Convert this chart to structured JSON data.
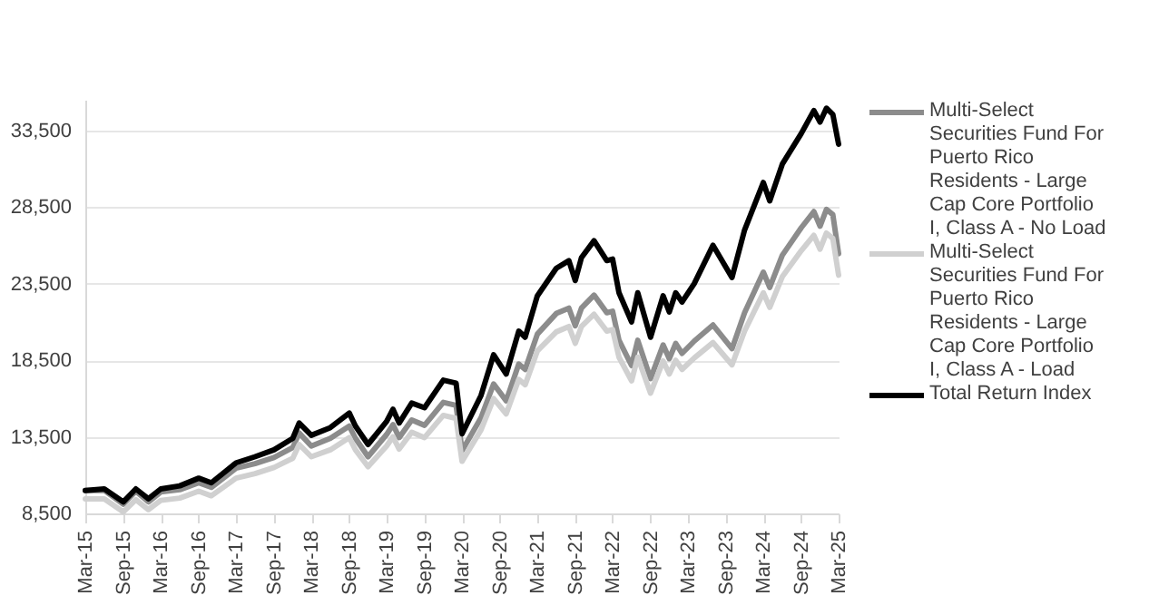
{
  "chart_data": {
    "type": "line",
    "x": [
      "2015-03",
      "2015-06",
      "2015-09",
      "2015-11",
      "2016-01",
      "2016-03",
      "2016-06",
      "2016-09",
      "2016-11",
      "2017-03",
      "2017-06",
      "2017-09",
      "2017-12",
      "2018-01",
      "2018-03",
      "2018-06",
      "2018-09",
      "2018-10",
      "2018-12",
      "2019-03",
      "2019-04",
      "2019-05",
      "2019-07",
      "2019-09",
      "2019-12",
      "2020-02",
      "2020-03",
      "2020-06",
      "2020-08",
      "2020-10",
      "2020-12",
      "2021-01",
      "2021-03",
      "2021-06",
      "2021-08",
      "2021-09",
      "2021-10",
      "2021-12",
      "2022-02",
      "2022-03",
      "2022-04",
      "2022-06",
      "2022-07",
      "2022-09",
      "2022-11",
      "2022-12",
      "2023-01",
      "2023-02",
      "2023-04",
      "2023-07",
      "2023-10",
      "2023-12",
      "2024-03",
      "2024-04",
      "2024-06",
      "2024-09",
      "2024-11",
      "2024-12",
      "2025-01",
      "2025-02",
      "2025-03"
    ],
    "series": [
      {
        "name": "Multi-Select Securities Fund For Puerto Rico Residents - Large Cap Core Portfolio I, Class A - No Load",
        "color": "#8c8c8c",
        "values": [
          10000,
          10000,
          9100,
          9950,
          9250,
          9900,
          10050,
          10500,
          10200,
          11450,
          11750,
          12150,
          12800,
          13750,
          12900,
          13400,
          14200,
          13400,
          12200,
          13650,
          14300,
          13450,
          14600,
          14250,
          15750,
          15550,
          12600,
          14750,
          16950,
          15850,
          18250,
          17900,
          20200,
          21550,
          21900,
          20750,
          21900,
          22750,
          21600,
          21700,
          19800,
          18150,
          19800,
          17300,
          19500,
          18600,
          19600,
          18950,
          19750,
          20800,
          19250,
          21600,
          24250,
          23250,
          25350,
          27150,
          28200,
          27250,
          28350,
          28000,
          25450
        ]
      },
      {
        "name": "Multi-Select Securities Fund For Puerto Rico Residents - Large Cap Core Portfolio I, Class A - Load",
        "color": "#d0d0d0",
        "values": [
          9450,
          9450,
          8600,
          9400,
          8750,
          9350,
          9500,
          9950,
          9650,
          10800,
          11100,
          11500,
          12100,
          13000,
          12200,
          12650,
          13450,
          12650,
          11550,
          12900,
          13500,
          12700,
          13800,
          13450,
          14900,
          14700,
          11900,
          13950,
          16000,
          15000,
          17250,
          16900,
          19100,
          20350,
          20700,
          19600,
          20700,
          21500,
          20400,
          20500,
          18700,
          17150,
          18700,
          16350,
          18450,
          17600,
          18500,
          17900,
          18650,
          19650,
          18200,
          20400,
          22900,
          21950,
          23950,
          25650,
          26650,
          25750,
          26800,
          26450,
          24050
        ]
      },
      {
        "name": "Total Return Index",
        "color": "#000000",
        "values": [
          10000,
          10100,
          9250,
          10100,
          9450,
          10100,
          10300,
          10800,
          10500,
          11800,
          12200,
          12650,
          13400,
          14400,
          13600,
          14100,
          15050,
          14200,
          13000,
          14500,
          15300,
          14400,
          15700,
          15400,
          17200,
          17000,
          13700,
          16200,
          18850,
          17600,
          20400,
          20000,
          22700,
          24500,
          25000,
          23700,
          25200,
          26300,
          25000,
          25100,
          22900,
          21000,
          22900,
          20000,
          22700,
          21650,
          22900,
          22300,
          23500,
          26000,
          23900,
          27000,
          30100,
          28900,
          31300,
          33300,
          34800,
          34050,
          34950,
          34550,
          32600
        ]
      }
    ],
    "xlim": [
      "2015-03",
      "2025-03"
    ],
    "xticks": [
      {
        "value": "2015-03",
        "label": "Mar-15"
      },
      {
        "value": "2015-09",
        "label": "Sep-15"
      },
      {
        "value": "2016-03",
        "label": "Mar-16"
      },
      {
        "value": "2016-09",
        "label": "Sep-16"
      },
      {
        "value": "2017-03",
        "label": "Mar-17"
      },
      {
        "value": "2017-09",
        "label": "Sep-17"
      },
      {
        "value": "2018-03",
        "label": "Mar-18"
      },
      {
        "value": "2018-09",
        "label": "Sep-18"
      },
      {
        "value": "2019-03",
        "label": "Mar-19"
      },
      {
        "value": "2019-09",
        "label": "Sep-19"
      },
      {
        "value": "2020-03",
        "label": "Mar-20"
      },
      {
        "value": "2020-09",
        "label": "Sep-20"
      },
      {
        "value": "2021-03",
        "label": "Mar-21"
      },
      {
        "value": "2021-09",
        "label": "Sep-21"
      },
      {
        "value": "2022-03",
        "label": "Mar-22"
      },
      {
        "value": "2022-09",
        "label": "Sep-22"
      },
      {
        "value": "2023-03",
        "label": "Mar-23"
      },
      {
        "value": "2023-09",
        "label": "Sep-23"
      },
      {
        "value": "2024-03",
        "label": "Mar-24"
      },
      {
        "value": "2024-09",
        "label": "Sep-24"
      },
      {
        "value": "2025-03",
        "label": "Mar-25"
      }
    ],
    "ylim": [
      8500,
      35500
    ],
    "yticks": [
      {
        "value": 8500,
        "label": "8,500"
      },
      {
        "value": 13500,
        "label": "13,500"
      },
      {
        "value": 18500,
        "label": "18,500"
      },
      {
        "value": 23500,
        "label": "23,500"
      },
      {
        "value": 28500,
        "label": "28,500"
      },
      {
        "value": 33500,
        "label": "33,500"
      }
    ],
    "grid": "y",
    "legend": "right",
    "marker": "none",
    "line_style": "solid"
  }
}
